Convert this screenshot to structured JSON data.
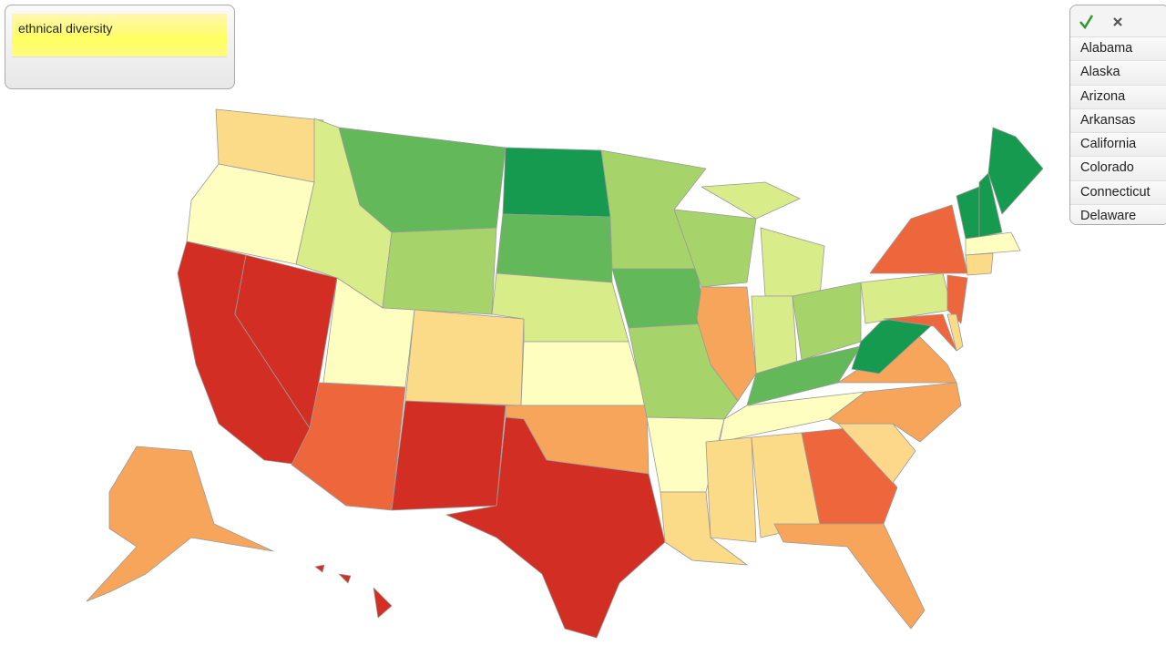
{
  "search": {
    "query": "ethnical diversity"
  },
  "state_list": {
    "items": [
      "Alabama",
      "Alaska",
      "Arizona",
      "Arkansas",
      "California",
      "Colorado",
      "Connecticut",
      "Delaware"
    ]
  }
}
